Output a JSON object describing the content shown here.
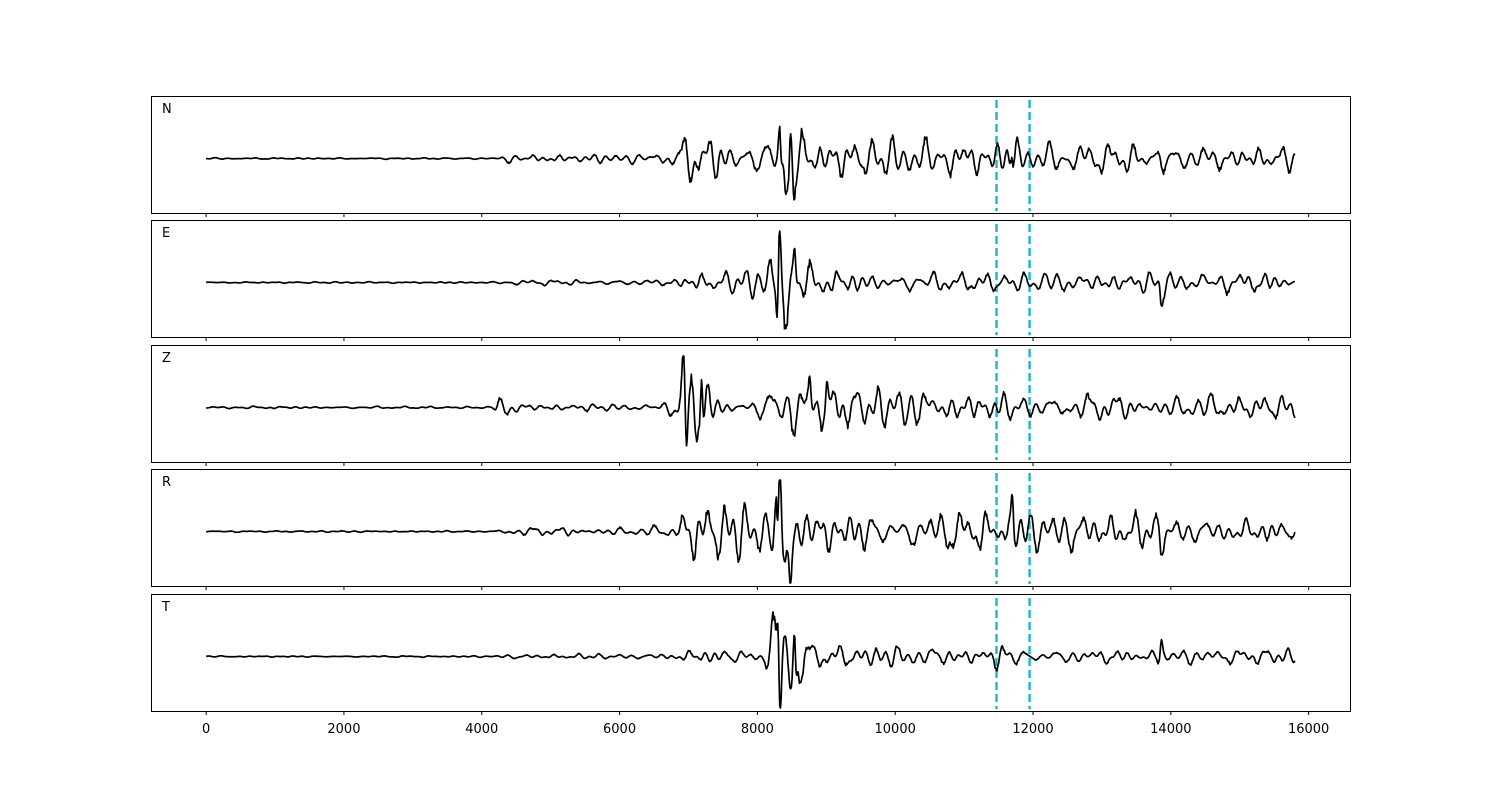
{
  "chart_data": {
    "type": "line",
    "x_ticks": [
      0,
      2000,
      4000,
      6000,
      8000,
      10000,
      12000,
      14000,
      16000
    ],
    "x_tick_labels": [
      "0",
      "2000",
      "4000",
      "6000",
      "8000",
      "10000",
      "12000",
      "14000",
      "16000"
    ],
    "xlim": [
      -800,
      16600
    ],
    "ylim": [
      -1,
      1
    ],
    "xlabel": "",
    "ylabel": "",
    "grid": false,
    "reference_lines": {
      "style": "dashed",
      "color": "#17becf",
      "x": [
        11470,
        11950
      ]
    },
    "trace_style": {
      "color": "#000000",
      "x_start": 0,
      "x_end": 15800
    },
    "series": [
      {
        "name": "N",
        "envelope": [
          [
            0,
            0.01
          ],
          [
            4200,
            0.012
          ],
          [
            4300,
            0.06
          ],
          [
            6400,
            0.07
          ],
          [
            6850,
            0.12
          ],
          [
            6950,
            0.4
          ],
          [
            7600,
            0.3
          ],
          [
            8100,
            0.3
          ],
          [
            8320,
            0.95
          ],
          [
            8500,
            0.75
          ],
          [
            8700,
            0.3
          ],
          [
            11400,
            0.28
          ],
          [
            11700,
            0.4
          ],
          [
            12000,
            0.25
          ],
          [
            13800,
            0.22
          ],
          [
            13850,
            0.5
          ],
          [
            13950,
            0.2
          ],
          [
            15800,
            0.18
          ]
        ],
        "peaks": [
          [
            8330,
            0.82
          ],
          [
            8340,
            -0.82
          ],
          [
            8480,
            0.6
          ],
          [
            8530,
            -0.6
          ],
          [
            11690,
            0.38
          ]
        ]
      },
      {
        "name": "E",
        "envelope": [
          [
            0,
            0.01
          ],
          [
            4200,
            0.012
          ],
          [
            4300,
            0.04
          ],
          [
            6400,
            0.04
          ],
          [
            6850,
            0.08
          ],
          [
            6950,
            0.12
          ],
          [
            7700,
            0.18
          ],
          [
            8100,
            0.22
          ],
          [
            8300,
            0.9
          ],
          [
            8550,
            0.6
          ],
          [
            8750,
            0.3
          ],
          [
            9200,
            0.18
          ],
          [
            11400,
            0.14
          ],
          [
            11700,
            0.22
          ],
          [
            11900,
            0.15
          ],
          [
            13800,
            0.15
          ],
          [
            13850,
            0.35
          ],
          [
            13950,
            0.15
          ],
          [
            15400,
            0.16
          ],
          [
            15800,
            0.12
          ]
        ],
        "peaks": [
          [
            8290,
            -0.95
          ],
          [
            8320,
            0.6
          ],
          [
            8540,
            0.58
          ],
          [
            13860,
            -0.3
          ]
        ]
      },
      {
        "name": "Z",
        "envelope": [
          [
            0,
            0.01
          ],
          [
            300,
            0.02
          ],
          [
            4150,
            0.015
          ],
          [
            4250,
            0.16
          ],
          [
            4500,
            0.12
          ],
          [
            4800,
            0.05
          ],
          [
            6500,
            0.05
          ],
          [
            6800,
            0.15
          ],
          [
            6900,
            0.65
          ],
          [
            7150,
            0.75
          ],
          [
            7400,
            0.2
          ],
          [
            8000,
            0.25
          ],
          [
            8200,
            0.38
          ],
          [
            8800,
            0.35
          ],
          [
            11400,
            0.22
          ],
          [
            11900,
            0.2
          ],
          [
            13800,
            0.2
          ],
          [
            15800,
            0.18
          ]
        ],
        "peaks": [
          [
            6970,
            -0.75
          ],
          [
            6930,
            0.6
          ],
          [
            7190,
            0.88
          ],
          [
            8760,
            0.45
          ],
          [
            9010,
            0.4
          ]
        ]
      },
      {
        "name": "R",
        "envelope": [
          [
            0,
            0.01
          ],
          [
            4200,
            0.012
          ],
          [
            4300,
            0.06
          ],
          [
            6400,
            0.07
          ],
          [
            6850,
            0.12
          ],
          [
            6950,
            0.45
          ],
          [
            7700,
            0.4
          ],
          [
            8150,
            0.35
          ],
          [
            8330,
            0.9
          ],
          [
            8600,
            0.65
          ],
          [
            8800,
            0.35
          ],
          [
            11400,
            0.3
          ],
          [
            11700,
            0.45
          ],
          [
            12000,
            0.3
          ],
          [
            13800,
            0.25
          ],
          [
            13850,
            0.5
          ],
          [
            13950,
            0.2
          ],
          [
            15800,
            0.2
          ]
        ],
        "peaks": [
          [
            8300,
            -0.82
          ],
          [
            8330,
            0.9
          ],
          [
            8480,
            -0.75
          ],
          [
            11700,
            0.58
          ]
        ]
      },
      {
        "name": "T",
        "envelope": [
          [
            0,
            0.01
          ],
          [
            4200,
            0.012
          ],
          [
            4300,
            0.03
          ],
          [
            6500,
            0.04
          ],
          [
            6900,
            0.08
          ],
          [
            7500,
            0.15
          ],
          [
            8100,
            0.18
          ],
          [
            8300,
            0.92
          ],
          [
            8600,
            0.7
          ],
          [
            8800,
            0.18
          ],
          [
            11400,
            0.12
          ],
          [
            11500,
            0.2
          ],
          [
            11900,
            0.1
          ],
          [
            13800,
            0.12
          ],
          [
            13850,
            0.3
          ],
          [
            13950,
            0.1
          ],
          [
            15800,
            0.12
          ]
        ],
        "peaks": [
          [
            8300,
            0.92
          ],
          [
            8330,
            -0.82
          ],
          [
            8540,
            0.62
          ],
          [
            8560,
            -0.68
          ],
          [
            13860,
            0.28
          ]
        ]
      }
    ]
  }
}
